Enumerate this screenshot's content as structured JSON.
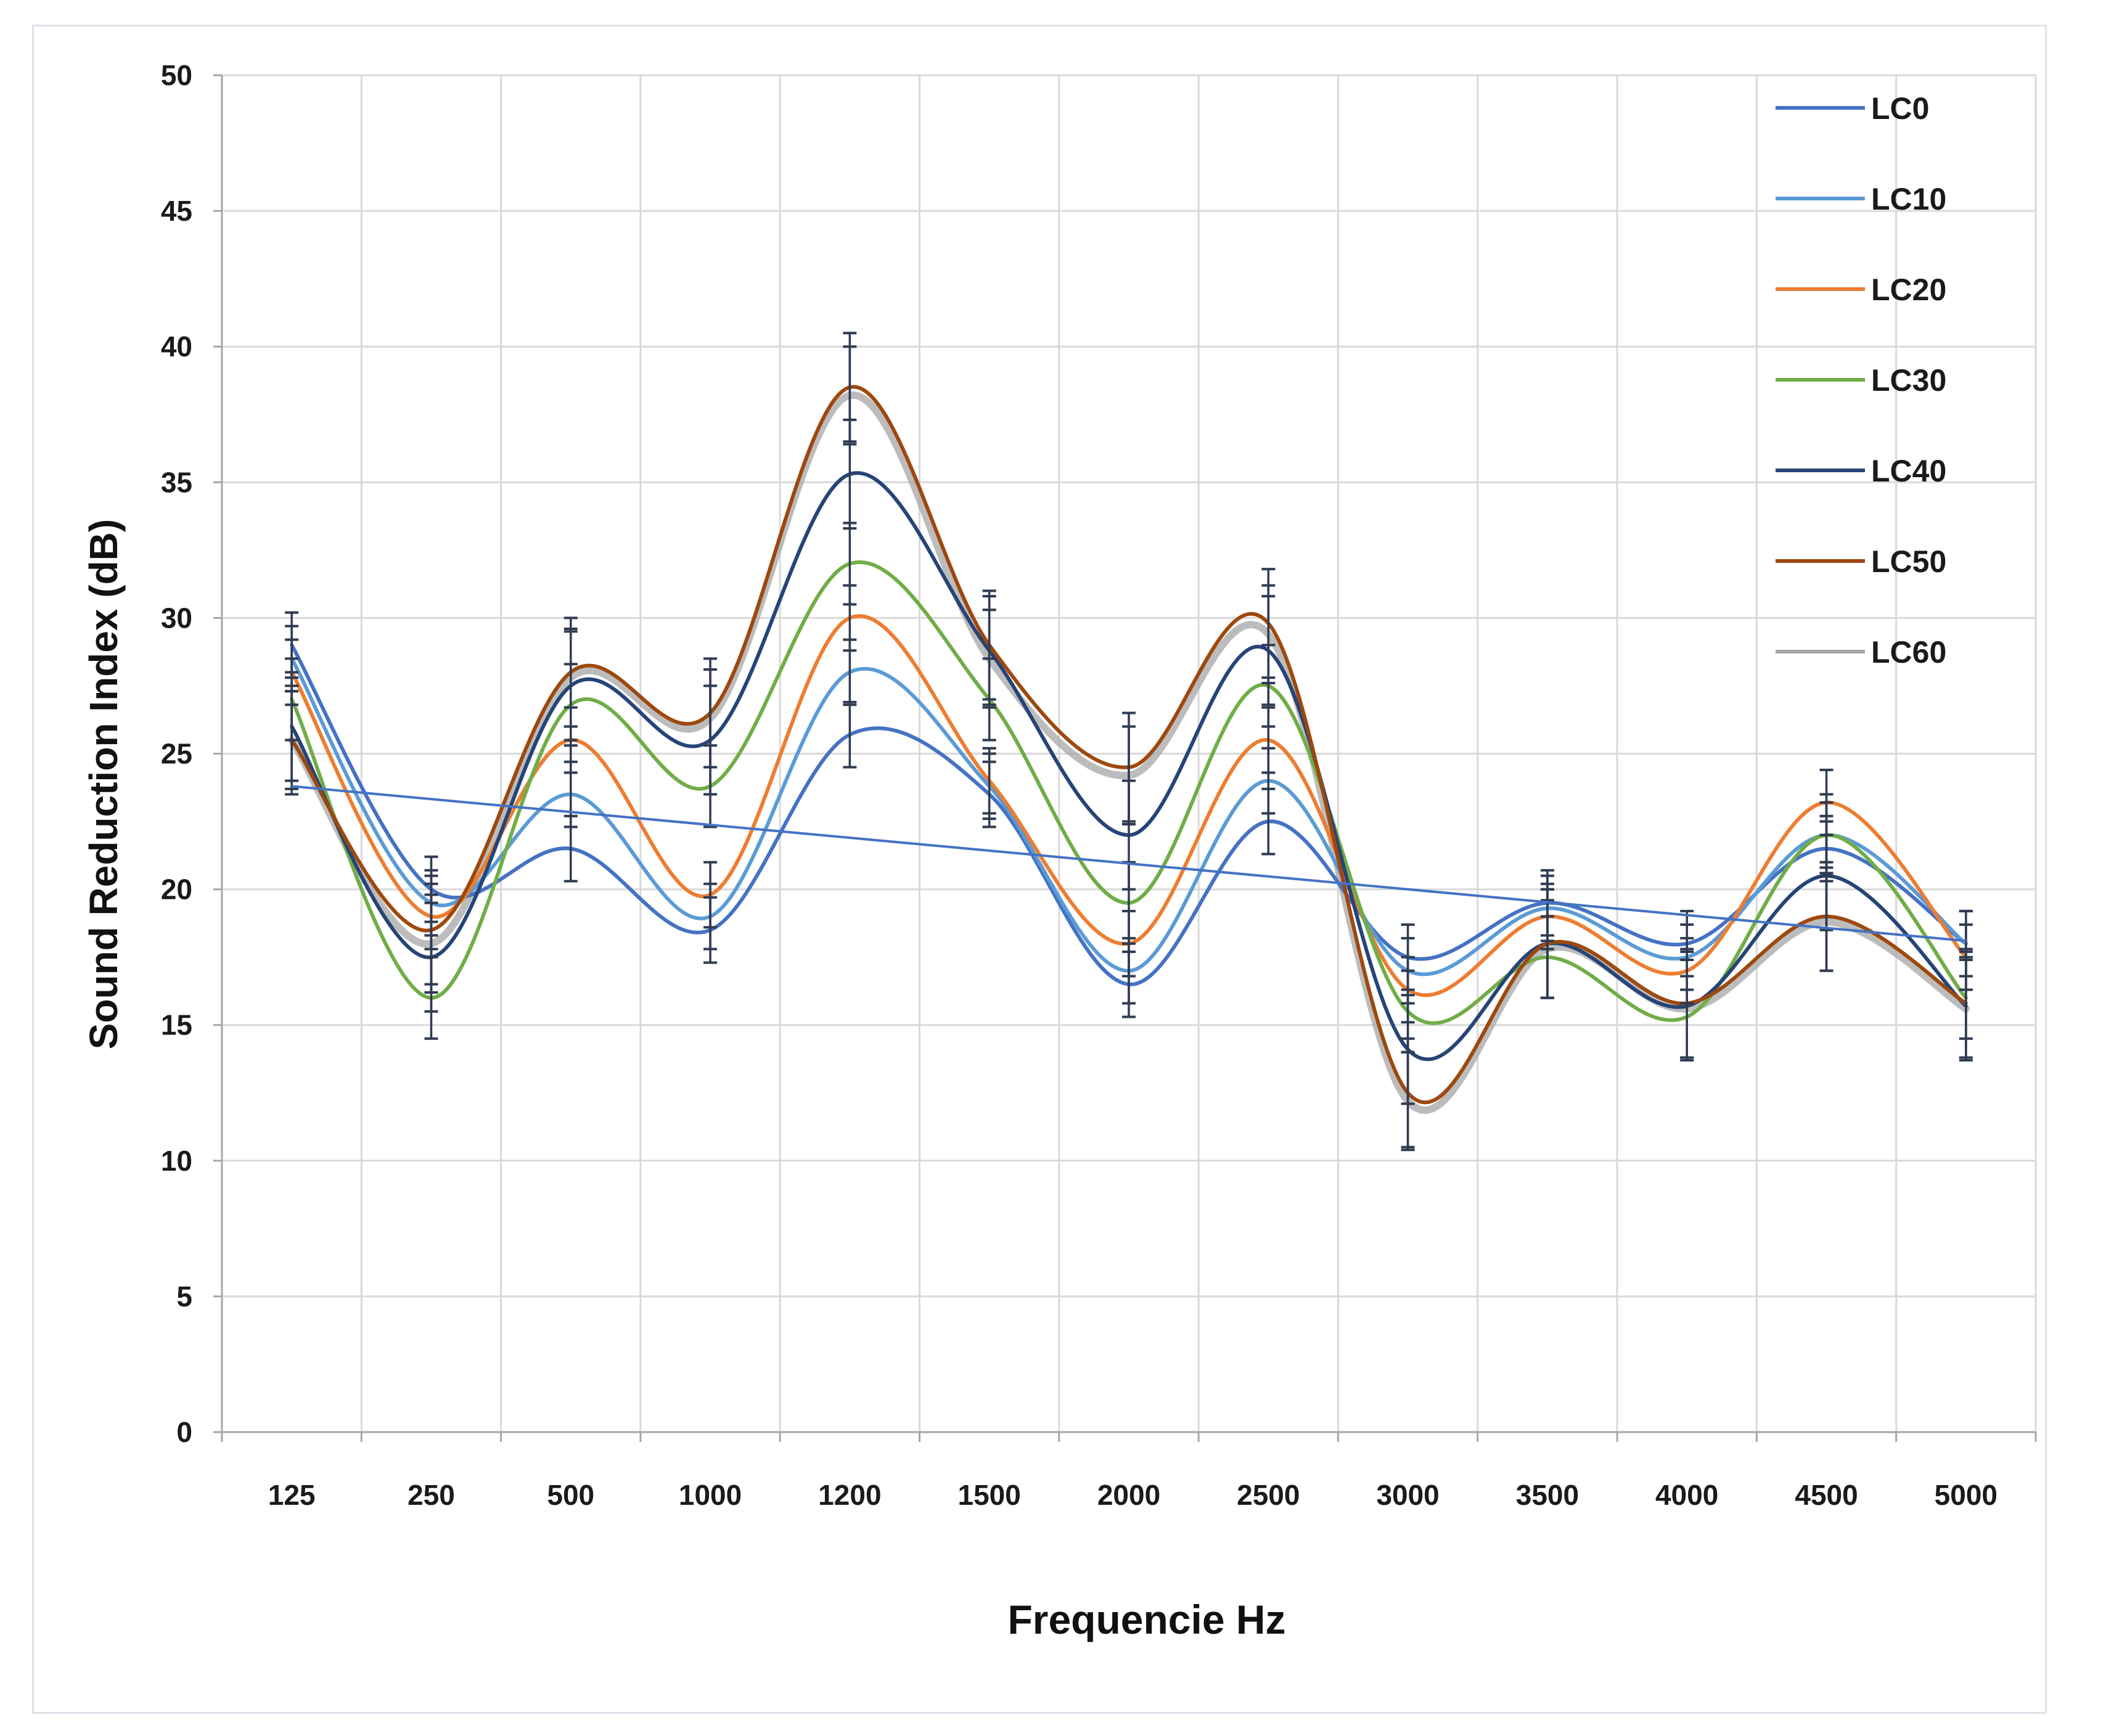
{
  "chart_data": {
    "type": "line",
    "title": "",
    "xlabel": "Frequencie Hz",
    "ylabel": "Sound Reduction Index (dB)",
    "ylim": [
      0,
      50
    ],
    "yticks": [
      0,
      5,
      10,
      15,
      20,
      25,
      30,
      35,
      40,
      45,
      50
    ],
    "grid": true,
    "smooth": true,
    "error_bars": true,
    "legend_position": "top-right",
    "categories": [
      "125",
      "250",
      "500",
      "1000",
      "1200",
      "1500",
      "2000",
      "2500",
      "3000",
      "3500",
      "4000",
      "4500",
      "5000"
    ],
    "series": [
      {
        "name": "LC0",
        "color": "#4472c4",
        "values": [
          29.0,
          20.0,
          21.5,
          18.5,
          25.7,
          23.5,
          16.5,
          22.5,
          17.5,
          19.5,
          18.0,
          21.5,
          18.0
        ],
        "error": 1.2
      },
      {
        "name": "LC10",
        "color": "#5b9bd5",
        "values": [
          28.5,
          19.5,
          23.5,
          19.0,
          28.0,
          23.8,
          17.0,
          24.0,
          17.0,
          19.3,
          17.5,
          22.0,
          18.0
        ],
        "error": 1.2
      },
      {
        "name": "LC20",
        "color": "#ed7d31",
        "values": [
          28.0,
          19.0,
          25.5,
          19.8,
          30.0,
          24.0,
          18.0,
          25.5,
          16.3,
          19.0,
          17.0,
          23.2,
          17.5
        ],
        "error": 1.2
      },
      {
        "name": "LC30",
        "color": "#70ad47",
        "values": [
          27.0,
          16.0,
          26.8,
          23.8,
          32.0,
          27.0,
          19.5,
          27.5,
          15.5,
          17.5,
          15.3,
          22.0,
          16.0
        ],
        "error": 1.5
      },
      {
        "name": "LC40",
        "color": "#264478",
        "values": [
          26.0,
          17.5,
          27.5,
          25.5,
          35.3,
          28.8,
          22.0,
          28.8,
          14.1,
          18.0,
          15.7,
          20.5,
          15.7
        ],
        "error": 2.0
      },
      {
        "name": "LC50",
        "color": "#9e480e",
        "values": [
          25.5,
          18.5,
          28.0,
          26.5,
          38.5,
          29.0,
          24.5,
          29.8,
          12.5,
          18.0,
          15.8,
          19.0,
          15.8
        ],
        "error": 2.0
      },
      {
        "name": "LC60",
        "color": "#a5a5a5",
        "values": [
          25.5,
          18.0,
          27.8,
          26.3,
          38.2,
          28.5,
          24.2,
          29.4,
          12.2,
          17.8,
          15.6,
          18.8,
          15.6
        ],
        "error": 1.8
      }
    ],
    "trendline": {
      "series": "LC0",
      "color": "#4472c4",
      "start": 23.8,
      "end": 18.1
    }
  }
}
